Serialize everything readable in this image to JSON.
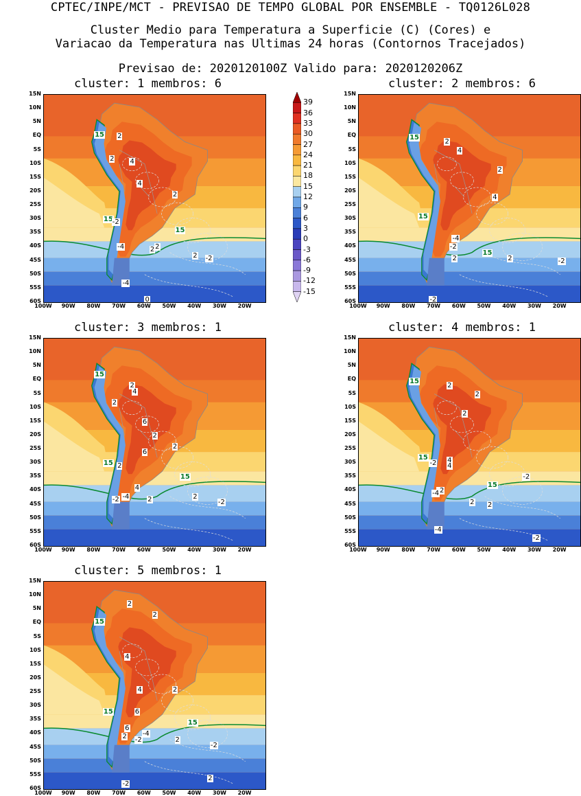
{
  "header": {
    "line1": "CPTEC/INPE/MCT - PREVISAO DE TEMPO GLOBAL POR ENSEMBLE - TQ0126L028",
    "line2": "Cluster Medio para Temperatura a Superficie (C) (Cores) e",
    "line3": "Variacao da Temperatura nas Ultimas 24 horas (Contornos Tracejados)",
    "line4": "Previsao de: 2020120100Z   Valido para: 2020120206Z"
  },
  "panels": [
    {
      "title": "cluster: 1   membros: 6",
      "labels": [
        "15",
        "15",
        "15",
        "2",
        "2",
        "4",
        "4",
        "2",
        "2",
        "-2",
        "-4",
        "2",
        "2",
        "-2",
        "-4",
        "0"
      ]
    },
    {
      "title": "cluster: 2   membros: 6",
      "labels": [
        "15",
        "15",
        "15",
        "2",
        "4",
        "2",
        "4",
        "-4",
        "-2",
        "2",
        "2",
        "-2",
        "-2"
      ]
    },
    {
      "title": "cluster: 3   membros: 1",
      "labels": [
        "15",
        "15",
        "15",
        "2",
        "4",
        "2",
        "6",
        "2",
        "6",
        "2",
        "2",
        "4",
        "-2",
        "-4",
        "2",
        "2",
        "-2"
      ]
    },
    {
      "title": "cluster: 4   membros: 1",
      "labels": [
        "15",
        "15",
        "15",
        "2",
        "2",
        "2",
        "4",
        "4",
        "-2",
        "-2",
        "-4",
        "2",
        "2",
        "-2",
        "-4",
        "-2"
      ]
    },
    {
      "title": "cluster: 5   membros: 1",
      "labels": [
        "15",
        "15",
        "15",
        "2",
        "2",
        "4",
        "2",
        "4",
        "6",
        "6",
        "-4",
        "-2",
        "2",
        "2",
        "-2",
        "2",
        "-2"
      ]
    }
  ],
  "lat_labels": [
    "15N",
    "10N",
    "5N",
    "EQ",
    "5S",
    "10S",
    "15S",
    "20S",
    "25S",
    "30S",
    "35S",
    "40S",
    "45S",
    "50S",
    "55S",
    "60S"
  ],
  "lon_labels": [
    "100W",
    "90W",
    "80W",
    "70W",
    "60W",
    "50W",
    "40W",
    "30W",
    "20W"
  ],
  "colorbar": {
    "labels": [
      "39",
      "36",
      "33",
      "30",
      "27",
      "24",
      "21",
      "18",
      "15",
      "12",
      "9",
      "6",
      "3",
      "0",
      "-3",
      "-6",
      "-9",
      "-12",
      "-15"
    ],
    "colors": [
      "#a00000",
      "#c81818",
      "#e03020",
      "#ea5a24",
      "#f07a2c",
      "#f59a34",
      "#f8b840",
      "#fbd670",
      "#fbe8a0",
      "#a8d0f0",
      "#70a8e8",
      "#4a80d8",
      "#2c58c8",
      "#2a3cb8",
      "#4a44c0",
      "#6a58c8",
      "#8a78d8",
      "#aa98e0",
      "#c8b8ec",
      "#e0d4f4"
    ]
  }
}
